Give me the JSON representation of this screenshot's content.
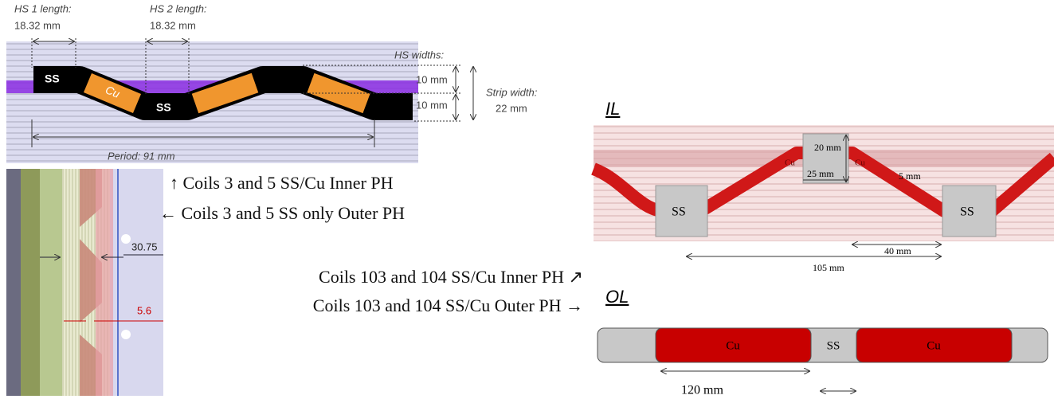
{
  "inner_ph_strip": {
    "hs1_label": "HS 1 length:",
    "hs1_value": "18.32 mm",
    "hs2_label": "HS 2 length:",
    "hs2_value": "18.32 mm",
    "hs_widths_label": "HS widths:",
    "hs_width_1": "10 mm",
    "hs_width_2": "10 mm",
    "strip_width_label": "Strip width:",
    "strip_width_value": "22 mm",
    "segments": [
      "SS",
      "Cu",
      "SS"
    ],
    "period": "Period: 91 mm"
  },
  "outer_ph_section": {
    "dims": [
      "30.75",
      "5.6"
    ]
  },
  "captions": [
    "↑ Coils 3 and 5 SS/Cu Inner PH",
    "← Coils 3 and 5 SS only Outer PH",
    "Coils 103 and 104 SS/Cu Inner PH ↗",
    "Coils 103 and 104 SS/Cu Outer PH →"
  ],
  "il": {
    "title": "IL",
    "dims": [
      "20 mm",
      "25 mm",
      "5 mm",
      "40 mm",
      "105 mm"
    ],
    "labels": [
      "Cu",
      "Cu",
      "SS",
      "SS"
    ]
  },
  "ol": {
    "title": "OL",
    "labels": [
      "Cu",
      "SS",
      "Cu"
    ],
    "dim": "120 mm"
  }
}
